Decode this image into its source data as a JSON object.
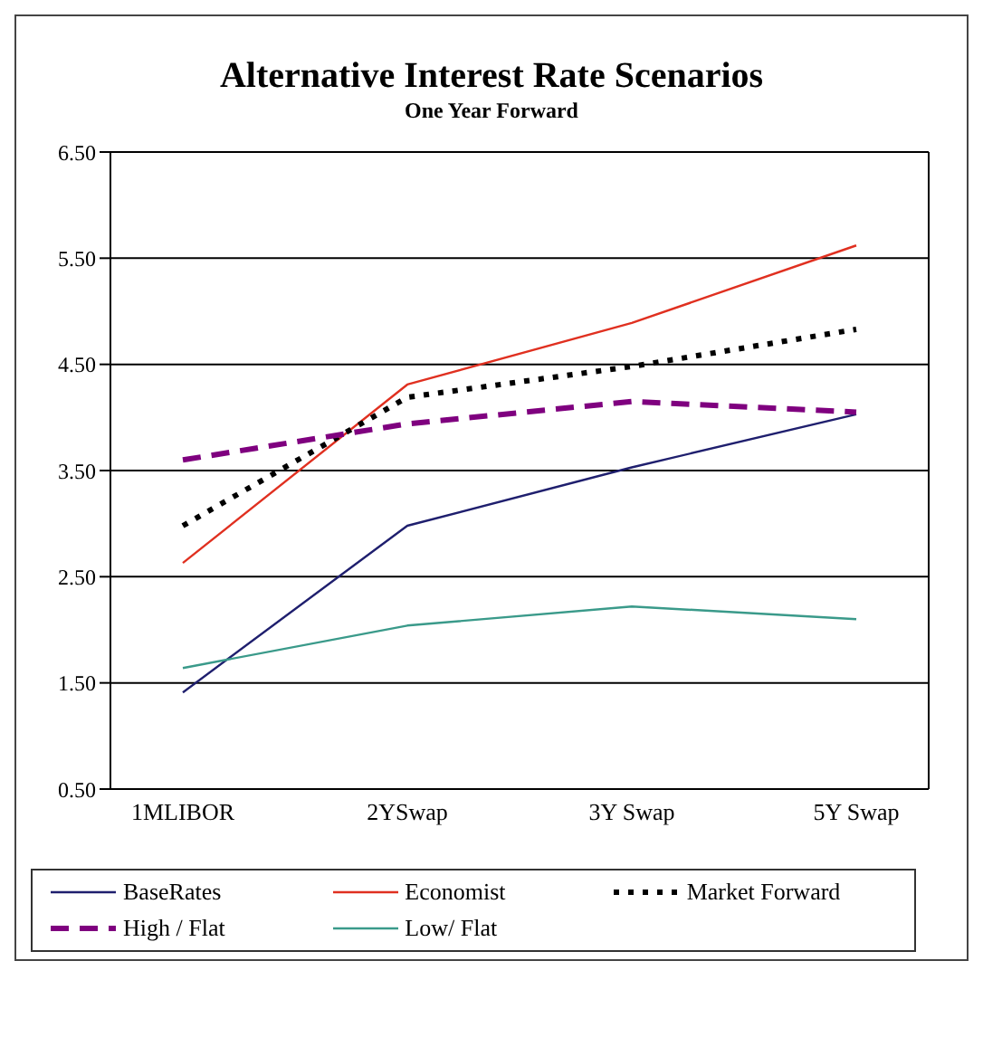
{
  "chart_data": {
    "type": "line",
    "title": "Alternative Interest Rate Scenarios",
    "subtitle": "One Year Forward",
    "categories": [
      "1MLIBOR",
      "2YSwap",
      "3Y Swap",
      "5Y Swap"
    ],
    "series": [
      {
        "name": "BaseRates",
        "color": "#1f1f6e",
        "line_style": "solid",
        "values": [
          1.41,
          2.98,
          3.53,
          4.03
        ]
      },
      {
        "name": "Economist",
        "color": "#e03020",
        "line_style": "solid",
        "values": [
          2.63,
          4.31,
          4.89,
          5.62
        ]
      },
      {
        "name": "Market Forward",
        "color": "#000000",
        "line_style": "dotted",
        "values": [
          2.98,
          4.19,
          4.48,
          4.83
        ]
      },
      {
        "name": "High / Flat",
        "color": "#7f007f",
        "line_style": "dashed",
        "values": [
          3.6,
          3.94,
          4.15,
          4.05
        ]
      },
      {
        "name": "Low/ Flat",
        "color": "#3a9a8a",
        "line_style": "solid",
        "values": [
          1.64,
          2.04,
          2.22,
          2.1
        ]
      }
    ],
    "ylim": [
      0.5,
      6.5
    ],
    "yticks": [
      {
        "value": 0.5,
        "label": "0.50"
      },
      {
        "value": 1.5,
        "label": "1.50"
      },
      {
        "value": 2.5,
        "label": "2.50"
      },
      {
        "value": 3.5,
        "label": "3.50"
      },
      {
        "value": 4.5,
        "label": "4.50"
      },
      {
        "value": 5.5,
        "label": "5.50"
      },
      {
        "value": 6.5,
        "label": "6.50"
      }
    ],
    "grid": "y",
    "legend": "bottom",
    "marker": "none"
  }
}
